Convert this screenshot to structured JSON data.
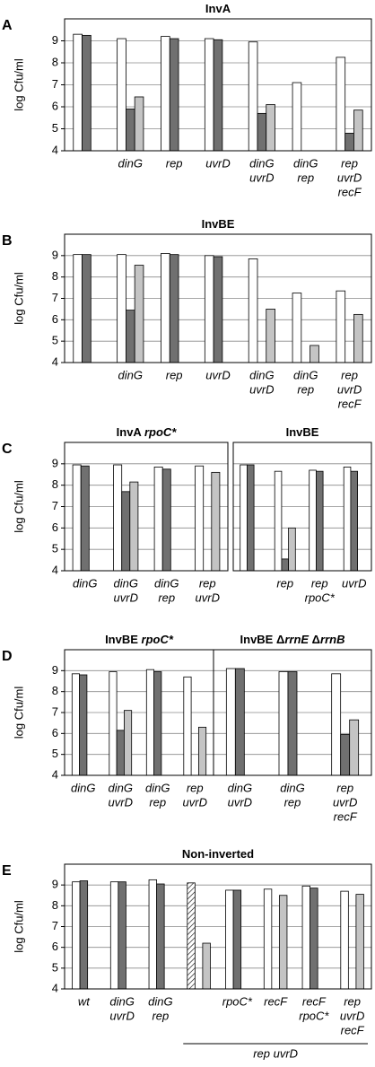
{
  "chart_data": [
    {
      "type": "bar",
      "panel_label": "A",
      "title": [
        "InvA"
      ],
      "title_italic": [
        false
      ],
      "ylabel": "log Cfu/ml",
      "categories": [
        null,
        [
          "dinG"
        ],
        [
          "rep"
        ],
        [
          "uvrD"
        ],
        [
          "dinG",
          "uvrD"
        ],
        [
          "dinG",
          "rep"
        ],
        [
          "rep",
          "uvrD",
          "recF"
        ]
      ],
      "series": [
        {
          "color": "#ffffff",
          "values": [
            9.3,
            9.1,
            9.2,
            9.1,
            8.95,
            7.1,
            8.25
          ]
        },
        {
          "color": "#707070",
          "values": [
            9.25,
            5.9,
            9.1,
            9.05,
            5.7,
            null,
            4.8
          ]
        },
        {
          "color": "#c4c4c4",
          "values": [
            null,
            6.45,
            null,
            null,
            6.1,
            null,
            5.85
          ]
        }
      ],
      "ylim": [
        4,
        10
      ],
      "yticks": [
        4,
        5,
        6,
        7,
        8,
        9
      ],
      "grid": true,
      "show_ytick_labels": true
    },
    {
      "type": "bar",
      "panel_label": "B",
      "title": [
        "InvBE"
      ],
      "title_italic": [
        false
      ],
      "ylabel": "log Cfu/ml",
      "categories": [
        null,
        [
          "dinG"
        ],
        [
          "rep"
        ],
        [
          "uvrD"
        ],
        [
          "dinG",
          "uvrD"
        ],
        [
          "dinG",
          "rep"
        ],
        [
          "rep",
          "uvrD",
          "recF"
        ]
      ],
      "series": [
        {
          "color": "#ffffff",
          "values": [
            9.05,
            9.05,
            9.1,
            9.0,
            8.85,
            7.25,
            7.35
          ]
        },
        {
          "color": "#707070",
          "values": [
            9.05,
            6.45,
            9.05,
            8.95,
            null,
            null,
            null
          ]
        },
        {
          "color": "#c4c4c4",
          "values": [
            null,
            8.55,
            null,
            null,
            6.5,
            4.8,
            6.25
          ]
        }
      ],
      "ylim": [
        4,
        10
      ],
      "yticks": [
        4,
        5,
        6,
        7,
        8,
        9
      ],
      "grid": true,
      "show_ytick_labels": true
    },
    {
      "type": "bar",
      "panel_label": "C",
      "title": [
        "InvA ",
        "rpoC*"
      ],
      "title_italic": [
        false,
        true
      ],
      "ylabel": "log Cfu/ml",
      "categories": [
        [
          "dinG"
        ],
        [
          "dinG",
          "uvrD"
        ],
        [
          "dinG",
          "rep"
        ],
        [
          "rep",
          "uvrD"
        ]
      ],
      "series": [
        {
          "color": "#ffffff",
          "values": [
            8.95,
            8.95,
            8.85,
            8.9
          ]
        },
        {
          "color": "#707070",
          "values": [
            8.9,
            7.7,
            8.75,
            null
          ]
        },
        {
          "color": "#c4c4c4",
          "values": [
            null,
            8.15,
            null,
            8.6
          ]
        }
      ],
      "ylim": [
        4,
        10
      ],
      "yticks": [
        4,
        5,
        6,
        7,
        8,
        9
      ],
      "grid": true,
      "show_ytick_labels": true
    },
    {
      "type": "bar",
      "title": [
        "InvBE"
      ],
      "title_italic": [
        false
      ],
      "categories": [
        null,
        [
          "rep"
        ],
        [
          "rep",
          "rpoC*"
        ],
        [
          "uvrD"
        ]
      ],
      "series": [
        {
          "color": "#ffffff",
          "values": [
            8.95,
            8.65,
            8.7,
            8.85
          ]
        },
        {
          "color": "#707070",
          "values": [
            8.95,
            4.55,
            8.65,
            8.65
          ]
        },
        {
          "color": "#c4c4c4",
          "values": [
            null,
            6.0,
            null,
            null
          ]
        }
      ],
      "ylim": [
        4,
        10
      ],
      "yticks": [
        4,
        5,
        6,
        7,
        8,
        9
      ],
      "grid": true,
      "show_ytick_labels": false
    },
    {
      "type": "bar",
      "panel_label": "D",
      "title": [
        "InvBE ",
        "rpoC*"
      ],
      "title_italic": [
        false,
        true
      ],
      "ylabel": "log Cfu/ml",
      "categories": [
        [
          "dinG"
        ],
        [
          "dinG",
          "uvrD"
        ],
        [
          "dinG",
          "rep"
        ],
        [
          "rep",
          "uvrD"
        ]
      ],
      "series": [
        {
          "color": "#ffffff",
          "values": [
            8.85,
            8.95,
            9.05,
            8.7
          ]
        },
        {
          "color": "#707070",
          "values": [
            8.8,
            6.15,
            8.95,
            null
          ]
        },
        {
          "color": "#c4c4c4",
          "values": [
            null,
            7.1,
            null,
            6.3
          ]
        }
      ],
      "ylim": [
        4,
        10
      ],
      "yticks": [
        4,
        5,
        6,
        7,
        8,
        9
      ],
      "grid": true,
      "show_ytick_labels": true
    },
    {
      "type": "bar",
      "title": [
        "InvBE Δ",
        "rrnE",
        " Δ",
        "rrnB"
      ],
      "title_italic": [
        false,
        true,
        false,
        true
      ],
      "categories": [
        [
          "dinG",
          "uvrD"
        ],
        [
          "dinG",
          "rep"
        ],
        [
          "rep",
          "uvrD",
          "recF"
        ]
      ],
      "series": [
        {
          "color": "#ffffff",
          "values": [
            9.1,
            8.95,
            8.85
          ]
        },
        {
          "color": "#707070",
          "values": [
            9.1,
            8.95,
            5.95
          ]
        },
        {
          "color": "#c4c4c4",
          "values": [
            null,
            null,
            6.65
          ]
        }
      ],
      "ylim": [
        4,
        10
      ],
      "yticks": [
        4,
        5,
        6,
        7,
        8,
        9
      ],
      "grid": true,
      "show_ytick_labels": false
    },
    {
      "type": "bar",
      "panel_label": "E",
      "title": [
        "Non-inverted"
      ],
      "title_italic": [
        false
      ],
      "ylabel": "log Cfu/ml",
      "categories": [
        [
          "wt"
        ],
        [
          "dinG",
          "uvrD"
        ],
        [
          "dinG",
          "rep"
        ],
        null,
        [
          "rpoC*"
        ],
        [
          "recF"
        ],
        [
          "recF",
          "rpoC*"
        ],
        [
          "rep",
          "uvrD",
          "recF"
        ]
      ],
      "series": [
        {
          "color": "#ffffff",
          "values": [
            9.15,
            9.15,
            9.25,
            9.1,
            8.75,
            8.8,
            8.95,
            8.7
          ]
        },
        {
          "color": "#707070",
          "values": [
            9.2,
            9.15,
            9.05,
            null,
            8.75,
            null,
            8.85,
            null
          ]
        },
        {
          "color": "#c4c4c4",
          "values": [
            null,
            null,
            null,
            6.2,
            null,
            8.5,
            null,
            8.55
          ]
        }
      ],
      "hatched": [
        3
      ],
      "group": {
        "label": "rep uvrD",
        "categories": [
          3,
          7
        ]
      },
      "ylim": [
        4,
        10
      ],
      "yticks": [
        4,
        5,
        6,
        7,
        8,
        9
      ],
      "grid": true,
      "show_ytick_labels": true
    }
  ]
}
